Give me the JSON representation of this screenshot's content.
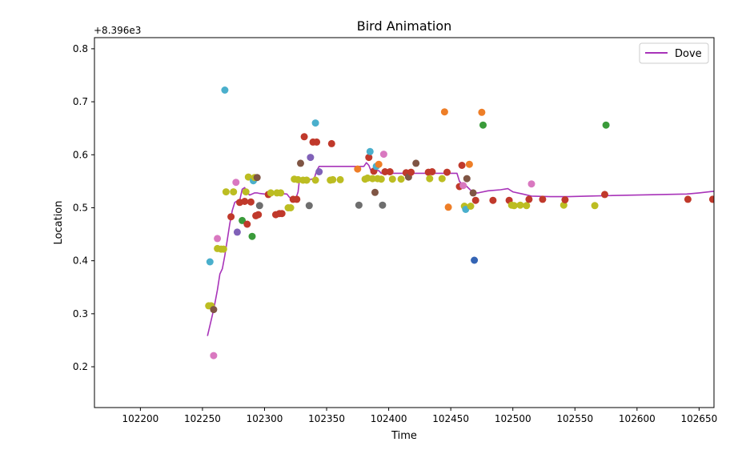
{
  "chart_data": {
    "type": "scatter",
    "title": "Bird Animation",
    "xlabel": "Time",
    "ylabel": "Location",
    "offset_text": "+8.396e3",
    "y_offset": 8396,
    "xlim": [
      102163,
      102662
    ],
    "ylim": [
      0.123,
      0.821
    ],
    "x_ticks": [
      102200,
      102250,
      102300,
      102350,
      102400,
      102450,
      102500,
      102550,
      102600,
      102650
    ],
    "y_ticks": [
      0.2,
      0.3,
      0.4,
      0.5,
      0.6,
      0.7,
      0.8
    ],
    "x_tick_labels": [
      "102200",
      "102250",
      "102300",
      "102350",
      "102400",
      "102450",
      "102500",
      "102550",
      "102600",
      "102650"
    ],
    "y_tick_labels": [
      "0.2",
      "0.3",
      "0.4",
      "0.5",
      "0.6",
      "0.7",
      "0.8"
    ],
    "legend": {
      "position": "upper-right",
      "entries": [
        {
          "label": "Dove",
          "color": "#a833b9"
        }
      ]
    },
    "colors": {
      "red": "#c0392b",
      "olive": "#bcbd22",
      "cyan": "#4aafcc",
      "pink": "#d978c0",
      "purple": "#8061b8",
      "green": "#3a9b3a",
      "brown": "#7f5544",
      "gray": "#6e6e6e",
      "orange": "#ee7e27",
      "blue": "#3464b4"
    },
    "series": [
      {
        "name": "Dove",
        "kind": "line",
        "color": "#a833b9",
        "points": [
          [
            102254,
            0.258
          ],
          [
            102256,
            0.278
          ],
          [
            102258,
            0.298
          ],
          [
            102260,
            0.32
          ],
          [
            102262,
            0.345
          ],
          [
            102264,
            0.375
          ],
          [
            102266,
            0.385
          ],
          [
            102268,
            0.41
          ],
          [
            102270,
            0.44
          ],
          [
            102272,
            0.47
          ],
          [
            102274,
            0.495
          ],
          [
            102276,
            0.51
          ],
          [
            102278,
            0.513
          ],
          [
            102280,
            0.514
          ],
          [
            102282,
            0.535
          ],
          [
            102284,
            0.538
          ],
          [
            102286,
            0.528
          ],
          [
            102288,
            0.524
          ],
          [
            102290,
            0.526
          ],
          [
            102292,
            0.528
          ],
          [
            102294,
            0.528
          ],
          [
            102296,
            0.527
          ],
          [
            102300,
            0.526
          ],
          [
            102310,
            0.527
          ],
          [
            102318,
            0.526
          ],
          [
            102320,
            0.52
          ],
          [
            102322,
            0.515
          ],
          [
            102325,
            0.516
          ],
          [
            102327,
            0.53
          ],
          [
            102328,
            0.55
          ],
          [
            102334,
            0.552
          ],
          [
            102340,
            0.555
          ],
          [
            102342,
            0.57
          ],
          [
            102344,
            0.578
          ],
          [
            102350,
            0.578
          ],
          [
            102360,
            0.578
          ],
          [
            102370,
            0.578
          ],
          [
            102380,
            0.578
          ],
          [
            102382,
            0.585
          ],
          [
            102384,
            0.58
          ],
          [
            102386,
            0.568
          ],
          [
            102388,
            0.566
          ],
          [
            102390,
            0.57
          ],
          [
            102392,
            0.57
          ],
          [
            102394,
            0.565
          ],
          [
            102400,
            0.565
          ],
          [
            102420,
            0.565
          ],
          [
            102440,
            0.565
          ],
          [
            102455,
            0.565
          ],
          [
            102457,
            0.55
          ],
          [
            102459,
            0.545
          ],
          [
            102461,
            0.545
          ],
          [
            102463,
            0.54
          ],
          [
            102466,
            0.533
          ],
          [
            102468,
            0.528
          ],
          [
            102472,
            0.528
          ],
          [
            102480,
            0.532
          ],
          [
            102490,
            0.534
          ],
          [
            102496,
            0.536
          ],
          [
            102500,
            0.53
          ],
          [
            102508,
            0.526
          ],
          [
            102515,
            0.522
          ],
          [
            102530,
            0.521
          ],
          [
            102545,
            0.521
          ],
          [
            102560,
            0.522
          ],
          [
            102580,
            0.523
          ],
          [
            102600,
            0.524
          ],
          [
            102620,
            0.525
          ],
          [
            102640,
            0.526
          ],
          [
            102650,
            0.528
          ],
          [
            102662,
            0.531
          ]
        ]
      },
      {
        "name": "",
        "kind": "points",
        "points": [
          [
            102255,
            0.315,
            "olive"
          ],
          [
            102257,
            0.315,
            "olive"
          ],
          [
            102256,
            0.398,
            "cyan"
          ],
          [
            102259,
            0.308,
            "brown"
          ],
          [
            102259,
            0.221,
            "pink"
          ],
          [
            102262,
            0.442,
            "pink"
          ],
          [
            102262,
            0.423,
            "olive"
          ],
          [
            102265,
            0.422,
            "olive"
          ],
          [
            102267,
            0.422,
            "olive"
          ],
          [
            102268,
            0.722,
            "cyan"
          ],
          [
            102269,
            0.53,
            "olive"
          ],
          [
            102273,
            0.483,
            "red"
          ],
          [
            102275,
            0.53,
            "olive"
          ],
          [
            102277,
            0.548,
            "pink"
          ],
          [
            102278,
            0.454,
            "purple"
          ],
          [
            102280,
            0.51,
            "red"
          ],
          [
            102282,
            0.476,
            "green"
          ],
          [
            102284,
            0.512,
            "red"
          ],
          [
            102285,
            0.53,
            "olive"
          ],
          [
            102286,
            0.469,
            "red"
          ],
          [
            102287,
            0.558,
            "olive"
          ],
          [
            102289,
            0.511,
            "red"
          ],
          [
            102290,
            0.446,
            "green"
          ],
          [
            102291,
            0.551,
            "cyan"
          ],
          [
            102292,
            0.557,
            "olive"
          ],
          [
            102293,
            0.485,
            "red"
          ],
          [
            102294,
            0.557,
            "brown"
          ],
          [
            102295,
            0.487,
            "red"
          ],
          [
            102296,
            0.504,
            "gray"
          ],
          [
            102303,
            0.525,
            "red"
          ],
          [
            102305,
            0.528,
            "olive"
          ],
          [
            102309,
            0.487,
            "red"
          ],
          [
            102310,
            0.528,
            "olive"
          ],
          [
            102312,
            0.489,
            "red"
          ],
          [
            102314,
            0.489,
            "red"
          ],
          [
            102313,
            0.528,
            "olive"
          ],
          [
            102319,
            0.5,
            "olive"
          ],
          [
            102321,
            0.5,
            "olive"
          ],
          [
            102323,
            0.516,
            "red"
          ],
          [
            102324,
            0.554,
            "olive"
          ],
          [
            102326,
            0.516,
            "red"
          ],
          [
            102327,
            0.553,
            "olive"
          ],
          [
            102329,
            0.584,
            "brown"
          ],
          [
            102331,
            0.552,
            "olive"
          ],
          [
            102332,
            0.634,
            "red"
          ],
          [
            102334,
            0.552,
            "olive"
          ],
          [
            102336,
            0.504,
            "gray"
          ],
          [
            102337,
            0.595,
            "purple"
          ],
          [
            102339,
            0.624,
            "red"
          ],
          [
            102341,
            0.66,
            "cyan"
          ],
          [
            102341,
            0.552,
            "olive"
          ],
          [
            102342,
            0.624,
            "red"
          ],
          [
            102344,
            0.568,
            "purple"
          ],
          [
            102353,
            0.552,
            "olive"
          ],
          [
            102354,
            0.621,
            "red"
          ],
          [
            102355,
            0.553,
            "olive"
          ],
          [
            102361,
            0.553,
            "olive"
          ],
          [
            102375,
            0.573,
            "orange"
          ],
          [
            102376,
            0.505,
            "gray"
          ],
          [
            102381,
            0.554,
            "olive"
          ],
          [
            102383,
            0.556,
            "olive"
          ],
          [
            102384,
            0.595,
            "red"
          ],
          [
            102385,
            0.606,
            "cyan"
          ],
          [
            102387,
            0.555,
            "olive"
          ],
          [
            102388,
            0.569,
            "red"
          ],
          [
            102389,
            0.529,
            "brown"
          ],
          [
            102390,
            0.578,
            "cyan"
          ],
          [
            102391,
            0.555,
            "olive"
          ],
          [
            102392,
            0.582,
            "orange"
          ],
          [
            102394,
            0.554,
            "olive"
          ],
          [
            102395,
            0.505,
            "gray"
          ],
          [
            102396,
            0.601,
            "pink"
          ],
          [
            102397,
            0.568,
            "red"
          ],
          [
            102401,
            0.568,
            "red"
          ],
          [
            102403,
            0.554,
            "olive"
          ],
          [
            102410,
            0.554,
            "olive"
          ],
          [
            102414,
            0.566,
            "red"
          ],
          [
            102416,
            0.558,
            "brown"
          ],
          [
            102418,
            0.567,
            "red"
          ],
          [
            102422,
            0.584,
            "brown"
          ],
          [
            102432,
            0.567,
            "red"
          ],
          [
            102433,
            0.555,
            "olive"
          ],
          [
            102435,
            0.568,
            "red"
          ],
          [
            102443,
            0.555,
            "olive"
          ],
          [
            102445,
            0.681,
            "orange"
          ],
          [
            102447,
            0.567,
            "red"
          ],
          [
            102448,
            0.501,
            "orange"
          ],
          [
            102457,
            0.54,
            "red"
          ],
          [
            102459,
            0.58,
            "red"
          ],
          [
            102460,
            0.542,
            "pink"
          ],
          [
            102461,
            0.503,
            "olive"
          ],
          [
            102462,
            0.497,
            "cyan"
          ],
          [
            102463,
            0.555,
            "brown"
          ],
          [
            102465,
            0.582,
            "orange"
          ],
          [
            102466,
            0.503,
            "olive"
          ],
          [
            102468,
            0.528,
            "brown"
          ],
          [
            102469,
            0.401,
            "blue"
          ],
          [
            102470,
            0.514,
            "red"
          ],
          [
            102475,
            0.68,
            "orange"
          ],
          [
            102476,
            0.656,
            "green"
          ],
          [
            102484,
            0.514,
            "red"
          ],
          [
            102497,
            0.514,
            "red"
          ],
          [
            102499,
            0.505,
            "olive"
          ],
          [
            102501,
            0.504,
            "olive"
          ],
          [
            102506,
            0.505,
            "olive"
          ],
          [
            102511,
            0.504,
            "olive"
          ],
          [
            102513,
            0.516,
            "red"
          ],
          [
            102515,
            0.545,
            "pink"
          ],
          [
            102524,
            0.516,
            "red"
          ],
          [
            102541,
            0.505,
            "olive"
          ],
          [
            102542,
            0.515,
            "red"
          ],
          [
            102566,
            0.504,
            "olive"
          ],
          [
            102574,
            0.525,
            "red"
          ],
          [
            102575,
            0.656,
            "green"
          ],
          [
            102641,
            0.516,
            "red"
          ],
          [
            102661,
            0.516,
            "red"
          ]
        ]
      }
    ]
  }
}
